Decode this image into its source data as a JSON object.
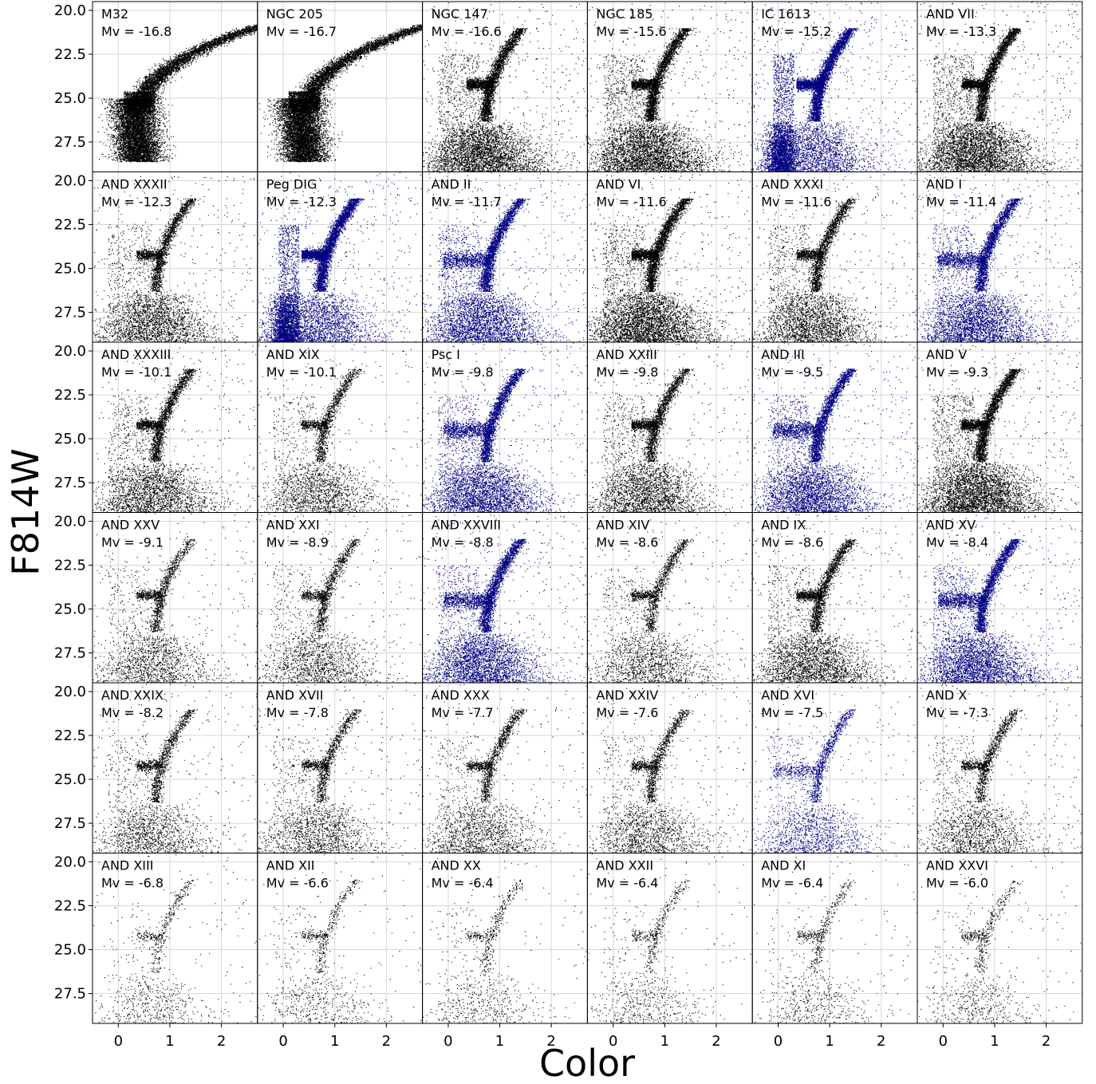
{
  "chart_data": {
    "type": "scatter",
    "xlabel": "Color",
    "ylabel": "F814W",
    "xlim": [
      -0.5,
      2.7
    ],
    "ylim": [
      29.2,
      19.5
    ],
    "y_inverted": true,
    "xticks": [
      0,
      1,
      2
    ],
    "xtick_labels": [
      "0",
      "1",
      "2"
    ],
    "yticks": [
      20.0,
      22.5,
      25.0,
      27.5
    ],
    "ytick_labels": [
      "20.0",
      "22.5",
      "25.0",
      "27.5"
    ],
    "grid": true,
    "layout": "6 rows x 6 columns, shared axes",
    "colors": {
      "default": "#000000",
      "highlight": "#000080"
    },
    "panels": [
      {
        "name": "M32",
        "mv": "Mv = -16.8",
        "color": "black",
        "type": "m32"
      },
      {
        "name": "NGC 205",
        "mv": "Mv = -16.7",
        "color": "black",
        "type": "m32"
      },
      {
        "name": "NGC 147",
        "mv": "Mv = -16.6",
        "color": "black",
        "type": "rich"
      },
      {
        "name": "NGC 185",
        "mv": "Mv = -15.6",
        "color": "black",
        "type": "rich"
      },
      {
        "name": "IC 1613",
        "mv": "Mv = -15.2",
        "color": "blue",
        "type": "dirr"
      },
      {
        "name": "AND VII",
        "mv": "Mv = -13.3",
        "color": "black",
        "type": "rich"
      },
      {
        "name": "AND XXXII",
        "mv": "Mv = -12.3",
        "color": "black",
        "type": "med"
      },
      {
        "name": "Peg DIG",
        "mv": "Mv = -12.3",
        "color": "blue",
        "type": "dirr"
      },
      {
        "name": "AND II",
        "mv": "Mv = -11.7",
        "color": "blue",
        "type": "bluehb"
      },
      {
        "name": "AND VI",
        "mv": "Mv = -11.6",
        "color": "black",
        "type": "rich"
      },
      {
        "name": "AND XXXI",
        "mv": "Mv = -11.6",
        "color": "black",
        "type": "med"
      },
      {
        "name": "AND I",
        "mv": "Mv = -11.4",
        "color": "blue",
        "type": "bluehb"
      },
      {
        "name": "AND XXXIII",
        "mv": "Mv = -10.1",
        "color": "black",
        "type": "med"
      },
      {
        "name": "AND XIX",
        "mv": "Mv = -10.1",
        "color": "black",
        "type": "diffuse"
      },
      {
        "name": "Psc I",
        "mv": "Mv = -9.8",
        "color": "blue",
        "type": "bluehb"
      },
      {
        "name": "AND XXIII",
        "mv": "Mv = -9.8",
        "color": "black",
        "type": "med"
      },
      {
        "name": "AND III",
        "mv": "Mv = -9.5",
        "color": "blue",
        "type": "bluehb"
      },
      {
        "name": "AND V",
        "mv": "Mv = -9.3",
        "color": "black",
        "type": "rich"
      },
      {
        "name": "AND XXV",
        "mv": "Mv = -9.1",
        "color": "black",
        "type": "sparse"
      },
      {
        "name": "AND XXI",
        "mv": "Mv = -8.9",
        "color": "black",
        "type": "sparse"
      },
      {
        "name": "AND XXVIII",
        "mv": "Mv = -8.8",
        "color": "blue",
        "type": "bluehb"
      },
      {
        "name": "AND XIV",
        "mv": "Mv = -8.6",
        "color": "black",
        "type": "sparse"
      },
      {
        "name": "AND IX",
        "mv": "Mv = -8.6",
        "color": "black",
        "type": "med"
      },
      {
        "name": "AND XV",
        "mv": "Mv = -8.4",
        "color": "blue",
        "type": "bluehb"
      },
      {
        "name": "AND XXIX",
        "mv": "Mv = -8.2",
        "color": "black",
        "type": "sparse"
      },
      {
        "name": "AND XVII",
        "mv": "Mv = -7.8",
        "color": "black",
        "type": "sparse"
      },
      {
        "name": "AND XXX",
        "mv": "Mv = -7.7",
        "color": "black",
        "type": "sparse"
      },
      {
        "name": "AND XXIV",
        "mv": "Mv = -7.6",
        "color": "black",
        "type": "sparse"
      },
      {
        "name": "AND XVI",
        "mv": "Mv = -7.5",
        "color": "blue",
        "type": "sparseblue"
      },
      {
        "name": "AND X",
        "mv": "Mv = -7.3",
        "color": "black",
        "type": "sparse"
      },
      {
        "name": "AND XIII",
        "mv": "Mv = -6.8",
        "color": "black",
        "type": "vsparse"
      },
      {
        "name": "AND XII",
        "mv": "Mv = -6.6",
        "color": "black",
        "type": "vsparse"
      },
      {
        "name": "AND XX",
        "mv": "Mv = -6.4",
        "color": "black",
        "type": "vsparse"
      },
      {
        "name": "AND XXII",
        "mv": "Mv = -6.4",
        "color": "black",
        "type": "vsparse"
      },
      {
        "name": "AND XI",
        "mv": "Mv = -6.4",
        "color": "black",
        "type": "vsparse"
      },
      {
        "name": "AND XXVI",
        "mv": "Mv = -6.0",
        "color": "black",
        "type": "vsparse"
      }
    ]
  }
}
